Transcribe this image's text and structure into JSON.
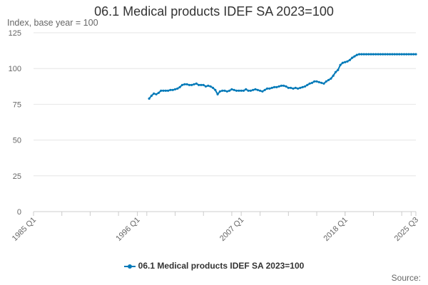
{
  "chart_data": {
    "type": "line",
    "title": "06.1 Medical products IDEF SA 2023=100",
    "ylabel": "Index, base year = 100",
    "xlabel": "",
    "ylim": [
      0,
      125
    ],
    "yticks": [
      0,
      25,
      50,
      75,
      100,
      125
    ],
    "xlim": [
      "1985 Q1",
      "2025 Q3"
    ],
    "xticks": [
      "1985 Q1",
      "1996 Q1",
      "2007 Q1",
      "2018 Q1",
      "2025 Q3"
    ],
    "grid": true,
    "legend_position": "bottom",
    "series": [
      {
        "name": "06.1 Medical products IDEF SA 2023=100",
        "color": "#0079b8",
        "x": [
          "1997 Q2",
          "1997 Q3",
          "1997 Q4",
          "1998 Q1",
          "1998 Q2",
          "1998 Q3",
          "1998 Q4",
          "1999 Q1",
          "1999 Q2",
          "1999 Q3",
          "1999 Q4",
          "2000 Q1",
          "2000 Q2",
          "2000 Q3",
          "2000 Q4",
          "2001 Q1",
          "2001 Q2",
          "2001 Q3",
          "2001 Q4",
          "2002 Q1",
          "2002 Q2",
          "2002 Q3",
          "2002 Q4",
          "2003 Q1",
          "2003 Q2",
          "2003 Q3",
          "2003 Q4",
          "2004 Q1",
          "2004 Q2",
          "2004 Q3",
          "2004 Q4",
          "2005 Q1",
          "2005 Q2",
          "2005 Q3",
          "2005 Q4",
          "2006 Q1",
          "2006 Q2",
          "2006 Q3",
          "2006 Q4",
          "2007 Q1",
          "2007 Q2",
          "2007 Q3",
          "2007 Q4",
          "2008 Q1",
          "2008 Q2",
          "2008 Q3",
          "2008 Q4",
          "2009 Q1",
          "2009 Q2",
          "2009 Q3",
          "2009 Q4",
          "2010 Q1",
          "2010 Q2",
          "2010 Q3",
          "2010 Q4",
          "2011 Q1",
          "2011 Q2",
          "2011 Q3",
          "2011 Q4",
          "2012 Q1",
          "2012 Q2",
          "2012 Q3",
          "2012 Q4",
          "2013 Q1",
          "2013 Q2",
          "2013 Q3",
          "2013 Q4",
          "2014 Q1",
          "2014 Q2",
          "2014 Q3",
          "2014 Q4",
          "2015 Q1",
          "2015 Q2",
          "2015 Q3",
          "2015 Q4",
          "2016 Q1",
          "2016 Q2",
          "2016 Q3",
          "2016 Q4",
          "2017 Q1",
          "2017 Q2",
          "2017 Q3",
          "2017 Q4",
          "2018 Q1",
          "2018 Q2",
          "2018 Q3",
          "2018 Q4",
          "2019 Q1",
          "2019 Q2",
          "2019 Q3",
          "2019 Q4",
          "2020 Q1",
          "2020 Q2",
          "2020 Q3",
          "2020 Q4",
          "2021 Q1",
          "2021 Q2",
          "2021 Q3",
          "2021 Q4",
          "2022 Q1",
          "2022 Q2",
          "2022 Q3",
          "2022 Q4",
          "2023 Q1",
          "2023 Q2",
          "2023 Q3",
          "2023 Q4",
          "2024 Q1",
          "2024 Q2",
          "2024 Q3",
          "2024 Q4",
          "2025 Q1",
          "2025 Q2",
          "2025 Q3"
        ],
        "values": [
          79,
          81,
          82.5,
          82,
          83,
          84.5,
          84.5,
          84.5,
          84.5,
          85,
          85,
          85.5,
          86,
          87,
          88.5,
          89,
          89,
          88.5,
          88.5,
          89,
          89.5,
          88.5,
          88.5,
          88.5,
          87.5,
          88,
          87.5,
          86.5,
          85,
          82,
          84,
          84.5,
          84.5,
          84,
          84.5,
          85.5,
          85,
          84.5,
          84.5,
          84.5,
          84.5,
          85.5,
          84.5,
          84.5,
          85,
          85.5,
          85,
          84.5,
          84,
          85,
          86,
          86,
          86.5,
          87,
          87,
          87.5,
          88,
          88,
          87.5,
          86.5,
          86.5,
          86,
          86.5,
          86,
          86.5,
          87,
          87.5,
          88.5,
          89.5,
          90,
          91,
          91,
          90.5,
          90,
          89.5,
          91,
          92,
          93,
          95,
          97.5,
          99,
          102.5,
          104,
          104.5,
          105,
          106,
          107.5,
          108.5,
          109.5,
          110,
          110,
          110,
          110,
          110,
          110,
          110,
          110,
          110,
          110,
          110,
          110,
          110,
          110,
          110,
          110,
          110,
          110,
          110,
          110,
          110,
          110,
          110,
          110,
          110
        ]
      }
    ]
  },
  "legend": {
    "label": "06.1 Medical products IDEF SA 2023=100"
  },
  "footer": {
    "source_label": "Source:"
  }
}
